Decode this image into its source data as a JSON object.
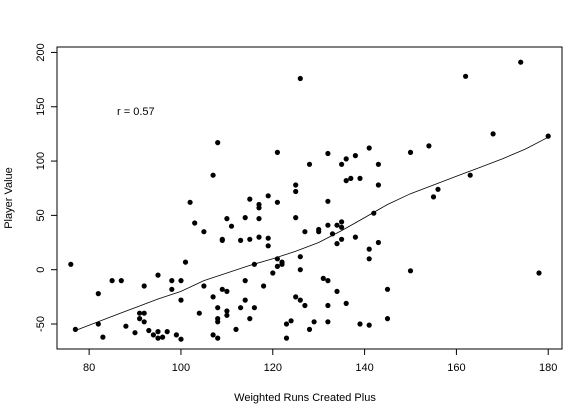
{
  "chart_data": {
    "type": "scatter",
    "title": "",
    "xlabel": "Weighted Runs Created Plus",
    "ylabel": "Player Value",
    "xlim": [
      73,
      183
    ],
    "ylim": [
      -73,
      205
    ],
    "x_ticks": [
      80,
      100,
      120,
      140,
      160,
      180
    ],
    "y_ticks": [
      -50,
      0,
      50,
      100,
      150,
      200
    ],
    "grid": false,
    "legend": "none",
    "marker_color": "#000000",
    "annotation": "r = 0.57",
    "points": [
      [
        76,
        5
      ],
      [
        77,
        -55
      ],
      [
        82,
        -22
      ],
      [
        82,
        -50
      ],
      [
        83,
        -62
      ],
      [
        85,
        -10
      ],
      [
        87,
        -10
      ],
      [
        88,
        -52
      ],
      [
        90,
        -58
      ],
      [
        91,
        -40
      ],
      [
        91,
        -45
      ],
      [
        92,
        -40
      ],
      [
        92,
        -48
      ],
      [
        92,
        -15
      ],
      [
        93,
        -56
      ],
      [
        94,
        -60
      ],
      [
        95,
        -57
      ],
      [
        95,
        -63
      ],
      [
        95,
        -5
      ],
      [
        96,
        -62
      ],
      [
        97,
        -57
      ],
      [
        98,
        -10
      ],
      [
        98,
        -18
      ],
      [
        99,
        -60
      ],
      [
        100,
        -64
      ],
      [
        100,
        -28
      ],
      [
        100,
        -10
      ],
      [
        101,
        7
      ],
      [
        102,
        62
      ],
      [
        103,
        43
      ],
      [
        104,
        -40
      ],
      [
        105,
        35
      ],
      [
        105,
        -15
      ],
      [
        107,
        87
      ],
      [
        107,
        -60
      ],
      [
        107,
        -25
      ],
      [
        108,
        117
      ],
      [
        108,
        -35
      ],
      [
        108,
        -45
      ],
      [
        108,
        -48
      ],
      [
        108,
        -63
      ],
      [
        109,
        28
      ],
      [
        109,
        27
      ],
      [
        109,
        -18
      ],
      [
        110,
        47
      ],
      [
        110,
        -38
      ],
      [
        110,
        -42
      ],
      [
        110,
        -20
      ],
      [
        111,
        40
      ],
      [
        112,
        -55
      ],
      [
        113,
        27
      ],
      [
        113,
        -35
      ],
      [
        114,
        48
      ],
      [
        114,
        -28
      ],
      [
        114,
        -10
      ],
      [
        115,
        65
      ],
      [
        115,
        28
      ],
      [
        115,
        -45
      ],
      [
        116,
        5
      ],
      [
        116,
        -35
      ],
      [
        117,
        60
      ],
      [
        117,
        57
      ],
      [
        117,
        47
      ],
      [
        117,
        30
      ],
      [
        118,
        -15
      ],
      [
        119,
        68
      ],
      [
        119,
        29
      ],
      [
        119,
        22
      ],
      [
        120,
        -3
      ],
      [
        121,
        108
      ],
      [
        121,
        62
      ],
      [
        121,
        3
      ],
      [
        121,
        10
      ],
      [
        122,
        5
      ],
      [
        122,
        7
      ],
      [
        123,
        -50
      ],
      [
        123,
        -63
      ],
      [
        124,
        -47
      ],
      [
        125,
        78
      ],
      [
        125,
        72
      ],
      [
        125,
        48
      ],
      [
        125,
        -25
      ],
      [
        126,
        176
      ],
      [
        126,
        12
      ],
      [
        126,
        0
      ],
      [
        126,
        -28
      ],
      [
        127,
        35
      ],
      [
        127,
        -33
      ],
      [
        128,
        97
      ],
      [
        128,
        -55
      ],
      [
        129,
        -48
      ],
      [
        130,
        37
      ],
      [
        130,
        35
      ],
      [
        131,
        -8
      ],
      [
        132,
        107
      ],
      [
        132,
        63
      ],
      [
        132,
        41
      ],
      [
        132,
        -10
      ],
      [
        132,
        -33
      ],
      [
        132,
        -48
      ],
      [
        133,
        33
      ],
      [
        134,
        24
      ],
      [
        134,
        41
      ],
      [
        134,
        -20
      ],
      [
        135,
        97
      ],
      [
        135,
        44
      ],
      [
        135,
        39
      ],
      [
        135,
        28
      ],
      [
        136,
        102
      ],
      [
        136,
        82
      ],
      [
        136,
        -31
      ],
      [
        137,
        84
      ],
      [
        138,
        105
      ],
      [
        138,
        30
      ],
      [
        139,
        84
      ],
      [
        139,
        -50
      ],
      [
        141,
        112
      ],
      [
        141,
        19
      ],
      [
        141,
        10
      ],
      [
        141,
        -51
      ],
      [
        142,
        52
      ],
      [
        143,
        97
      ],
      [
        143,
        78
      ],
      [
        143,
        25
      ],
      [
        145,
        -18
      ],
      [
        145,
        -45
      ],
      [
        150,
        108
      ],
      [
        150,
        -1
      ],
      [
        154,
        114
      ],
      [
        155,
        67
      ],
      [
        156,
        74
      ],
      [
        162,
        178
      ],
      [
        163,
        87
      ],
      [
        168,
        125
      ],
      [
        174,
        191
      ],
      [
        178,
        -3
      ],
      [
        180,
        123
      ]
    ],
    "trend_line": [
      [
        77,
        -56
      ],
      [
        85,
        -43
      ],
      [
        90,
        -35
      ],
      [
        95,
        -27
      ],
      [
        100,
        -20
      ],
      [
        105,
        -10
      ],
      [
        110,
        -3
      ],
      [
        115,
        4
      ],
      [
        120,
        10
      ],
      [
        125,
        17
      ],
      [
        130,
        25
      ],
      [
        135,
        36
      ],
      [
        140,
        48
      ],
      [
        145,
        60
      ],
      [
        150,
        70
      ],
      [
        155,
        78
      ],
      [
        160,
        86
      ],
      [
        165,
        94
      ],
      [
        170,
        102
      ],
      [
        175,
        111
      ],
      [
        180,
        122
      ]
    ]
  }
}
